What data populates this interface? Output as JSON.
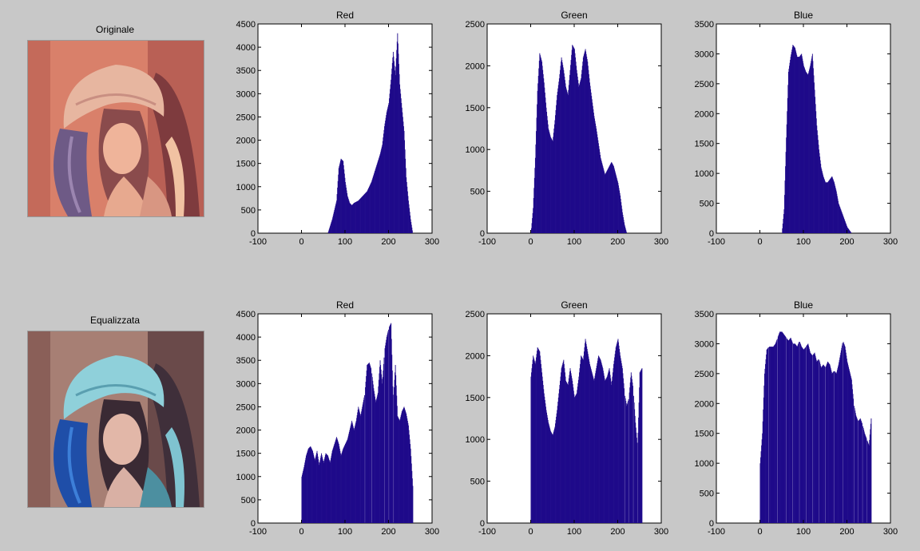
{
  "images": [
    {
      "title": "Originale"
    },
    {
      "title": "Equalizzata"
    }
  ],
  "colors": {
    "background": "#c8c8c8",
    "plot_area": "#ffffff",
    "bars": "#1f0a8a",
    "axis": "#000000"
  },
  "chart_data": [
    {
      "type": "bar",
      "title": "Red",
      "xlim": [
        -100,
        300
      ],
      "ylim": [
        0,
        4500
      ],
      "xticks": [
        -100,
        0,
        100,
        200,
        300
      ],
      "yticks": [
        0,
        500,
        1000,
        1500,
        2000,
        2500,
        3000,
        3500,
        4000,
        4500
      ],
      "x": [
        60,
        70,
        80,
        85,
        90,
        95,
        100,
        105,
        110,
        115,
        120,
        130,
        140,
        150,
        160,
        170,
        180,
        185,
        190,
        195,
        200,
        205,
        210,
        215,
        220,
        225,
        230,
        235,
        240,
        245,
        250,
        255
      ],
      "values": [
        0,
        300,
        700,
        1400,
        1600,
        1550,
        1100,
        800,
        650,
        600,
        650,
        700,
        800,
        900,
        1100,
        1400,
        1700,
        1900,
        2300,
        2600,
        2800,
        3300,
        3900,
        3400,
        4300,
        3200,
        2700,
        2200,
        1200,
        700,
        300,
        0
      ]
    },
    {
      "type": "bar",
      "title": "Green",
      "xlim": [
        -100,
        300
      ],
      "ylim": [
        0,
        2500
      ],
      "xticks": [
        -100,
        0,
        100,
        200,
        300
      ],
      "yticks": [
        0,
        500,
        1000,
        1500,
        2000,
        2500
      ],
      "x": [
        0,
        5,
        10,
        15,
        20,
        25,
        30,
        35,
        40,
        45,
        50,
        55,
        60,
        65,
        70,
        75,
        80,
        85,
        90,
        95,
        100,
        105,
        110,
        115,
        120,
        125,
        130,
        135,
        140,
        145,
        150,
        160,
        170,
        175,
        180,
        185,
        190,
        195,
        200,
        205,
        210,
        215,
        220
      ],
      "values": [
        0,
        300,
        900,
        1700,
        2150,
        2050,
        1800,
        1500,
        1250,
        1150,
        1100,
        1350,
        1650,
        1850,
        2100,
        1950,
        1750,
        1650,
        1950,
        2250,
        2200,
        1950,
        1750,
        1850,
        2100,
        2200,
        2050,
        1800,
        1600,
        1400,
        1250,
        900,
        700,
        750,
        800,
        850,
        800,
        700,
        600,
        450,
        250,
        100,
        0
      ]
    },
    {
      "type": "bar",
      "title": "Blue",
      "xlim": [
        -100,
        300
      ],
      "ylim": [
        0,
        3500
      ],
      "xticks": [
        -100,
        0,
        100,
        200,
        300
      ],
      "yticks": [
        0,
        500,
        1000,
        1500,
        2000,
        2500,
        3000,
        3500
      ],
      "x": [
        50,
        55,
        60,
        65,
        70,
        75,
        80,
        85,
        90,
        95,
        100,
        105,
        110,
        115,
        120,
        125,
        130,
        135,
        140,
        145,
        150,
        155,
        160,
        165,
        170,
        175,
        180,
        185,
        190,
        195,
        200,
        205,
        210
      ],
      "values": [
        0,
        400,
        1600,
        2700,
        2950,
        3150,
        3100,
        2950,
        2950,
        3000,
        2800,
        2700,
        2650,
        2800,
        3000,
        2400,
        1800,
        1400,
        1100,
        950,
        850,
        850,
        900,
        950,
        850,
        700,
        500,
        400,
        300,
        200,
        100,
        50,
        0
      ]
    },
    {
      "type": "bar",
      "title": "Red",
      "xlim": [
        -100,
        300
      ],
      "ylim": [
        0,
        4500
      ],
      "xticks": [
        -100,
        0,
        100,
        200,
        300
      ],
      "yticks": [
        0,
        500,
        1000,
        1500,
        2000,
        2500,
        3000,
        3500,
        4000,
        4500
      ],
      "x": [
        0,
        5,
        10,
        15,
        20,
        25,
        30,
        35,
        40,
        45,
        50,
        55,
        60,
        65,
        70,
        75,
        80,
        85,
        90,
        95,
        100,
        105,
        110,
        115,
        120,
        125,
        130,
        135,
        140,
        145,
        150,
        155,
        160,
        165,
        170,
        175,
        180,
        185,
        190,
        195,
        200,
        205,
        210,
        215,
        220,
        225,
        230,
        235,
        240,
        245,
        250,
        255
      ],
      "values": [
        1000,
        1200,
        1450,
        1600,
        1650,
        1550,
        1350,
        1550,
        1250,
        1500,
        1300,
        1500,
        1450,
        1300,
        1550,
        1700,
        1850,
        1700,
        1450,
        1600,
        1700,
        1800,
        2000,
        2200,
        2000,
        2200,
        2500,
        2300,
        2550,
        2800,
        3400,
        3450,
        3300,
        2900,
        2600,
        2800,
        3500,
        3000,
        3700,
        4000,
        4200,
        4300,
        2600,
        3400,
        2300,
        2200,
        2400,
        2500,
        2350,
        2100,
        1600,
        800
      ],
      "gaps": [
        145,
        160,
        190,
        200,
        210
      ]
    },
    {
      "type": "bar",
      "title": "Green",
      "xlim": [
        -100,
        300
      ],
      "ylim": [
        0,
        2500
      ],
      "xticks": [
        -100,
        0,
        100,
        200,
        300
      ],
      "yticks": [
        0,
        500,
        1000,
        1500,
        2000,
        2500
      ],
      "x": [
        0,
        5,
        10,
        15,
        20,
        25,
        30,
        35,
        40,
        45,
        50,
        55,
        60,
        65,
        70,
        75,
        80,
        85,
        90,
        95,
        100,
        105,
        110,
        115,
        120,
        125,
        130,
        135,
        140,
        145,
        150,
        155,
        160,
        165,
        170,
        175,
        180,
        185,
        190,
        195,
        200,
        205,
        210,
        215,
        220,
        225,
        230,
        235,
        240,
        245,
        250,
        255
      ],
      "values": [
        1750,
        2000,
        1900,
        2100,
        2050,
        1800,
        1550,
        1350,
        1200,
        1100,
        1050,
        1150,
        1350,
        1600,
        1850,
        1950,
        1700,
        1650,
        1850,
        1700,
        1500,
        1550,
        1750,
        2000,
        1950,
        2200,
        2050,
        1900,
        1800,
        1700,
        1850,
        2000,
        1950,
        1850,
        1700,
        1750,
        1850,
        1650,
        1900,
        2100,
        2200,
        2000,
        1850,
        1550,
        1400,
        1500,
        1800,
        1600,
        1200,
        900,
        1800,
        1850
      ],
      "gaps": [
        215,
        225,
        235,
        245
      ]
    },
    {
      "type": "bar",
      "title": "Blue",
      "xlim": [
        -100,
        300
      ],
      "ylim": [
        0,
        3500
      ],
      "xticks": [
        -100,
        0,
        100,
        200,
        300
      ],
      "yticks": [
        0,
        500,
        1000,
        1500,
        2000,
        2500,
        3000,
        3500
      ],
      "x": [
        0,
        5,
        10,
        15,
        20,
        25,
        30,
        35,
        40,
        45,
        50,
        55,
        60,
        65,
        70,
        75,
        80,
        85,
        90,
        95,
        100,
        105,
        110,
        115,
        120,
        125,
        130,
        135,
        140,
        145,
        150,
        155,
        160,
        165,
        170,
        175,
        180,
        185,
        190,
        195,
        200,
        205,
        210,
        215,
        220,
        225,
        230,
        235,
        240,
        245,
        250,
        255
      ],
      "values": [
        1000,
        1500,
        2500,
        2900,
        2950,
        2950,
        2950,
        3000,
        3100,
        3200,
        3200,
        3150,
        3100,
        3050,
        3100,
        3000,
        3000,
        2950,
        3050,
        2950,
        2900,
        2950,
        3000,
        2850,
        2800,
        2850,
        2700,
        2750,
        2600,
        2650,
        2600,
        2700,
        2650,
        2500,
        2550,
        2500,
        2650,
        2850,
        3050,
        2950,
        2700,
        2550,
        2400,
        2000,
        1800,
        1700,
        1750,
        1650,
        1500,
        1400,
        1300,
        1750
      ],
      "gaps": [
        20,
        40,
        60,
        75,
        90,
        105,
        120,
        135,
        150,
        170,
        190,
        215,
        225,
        235,
        245
      ]
    }
  ]
}
